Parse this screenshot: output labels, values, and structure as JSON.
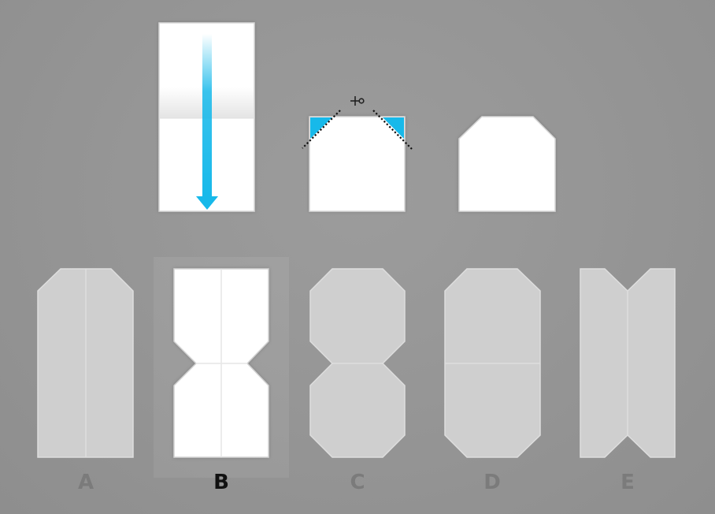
{
  "puzzle": {
    "steps": [
      {
        "id": "fold",
        "description_icon": "down-arrow-icon"
      },
      {
        "id": "cut",
        "description_icon": "scissors-icon"
      },
      {
        "id": "result"
      }
    ],
    "options": [
      {
        "letter": "A",
        "selected": false
      },
      {
        "letter": "B",
        "selected": true
      },
      {
        "letter": "C",
        "selected": false
      },
      {
        "letter": "D",
        "selected": false
      },
      {
        "letter": "E",
        "selected": false
      }
    ]
  },
  "colors": {
    "background": "#939393",
    "paper": "#ffffff",
    "option_dimmed": "#cfcfcf",
    "accent_blue": "#17b9ea",
    "label_dimmed": "#7b7b7b",
    "label_selected": "#111111"
  }
}
